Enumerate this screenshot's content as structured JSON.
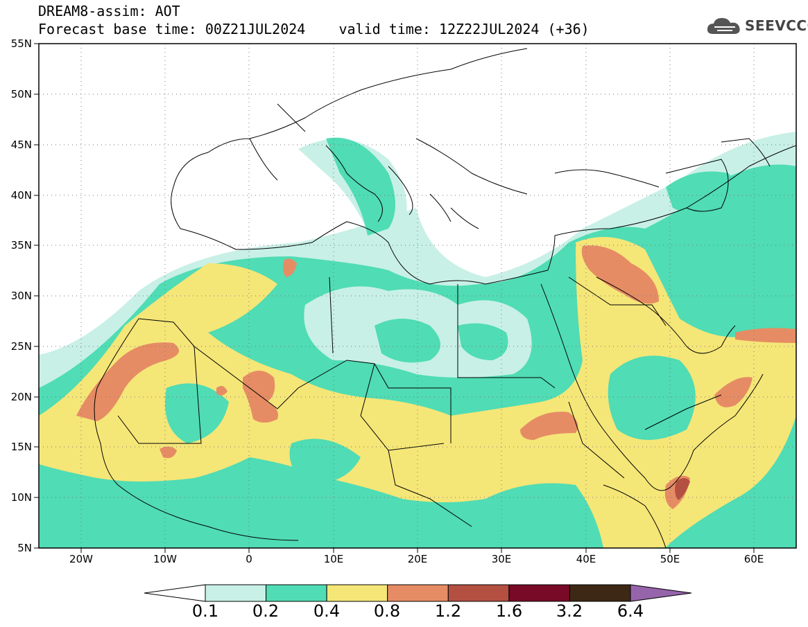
{
  "title": {
    "line1": "DREAM8-assim: AOT",
    "line2": "Forecast base time: 00Z21JUL2024    valid time: 12Z22JUL2024 (+36)"
  },
  "logo": {
    "text": "SEEVCCC",
    "icon": "cloud-icon"
  },
  "map": {
    "lon_range": [
      -25,
      65
    ],
    "lat_range": [
      5,
      55
    ],
    "lon_ticks": [
      "20W",
      "10W",
      "0",
      "10E",
      "20E",
      "30E",
      "40E",
      "50E",
      "60E"
    ],
    "lat_ticks": [
      "55N",
      "50N",
      "45N",
      "40N",
      "35N",
      "30N",
      "25N",
      "20N",
      "15N",
      "10N",
      "5N"
    ],
    "grid": "dotted"
  },
  "colorbar": {
    "labels": [
      "0.1",
      "0.2",
      "0.4",
      "0.8",
      "1.2",
      "1.6",
      "3.2",
      "6.4"
    ],
    "colors": [
      "#c8f0e6",
      "#50dcb4",
      "#f5e678",
      "#e68c64",
      "#b45041",
      "#780a28",
      "#3c2814",
      "#9664aa"
    ]
  }
}
